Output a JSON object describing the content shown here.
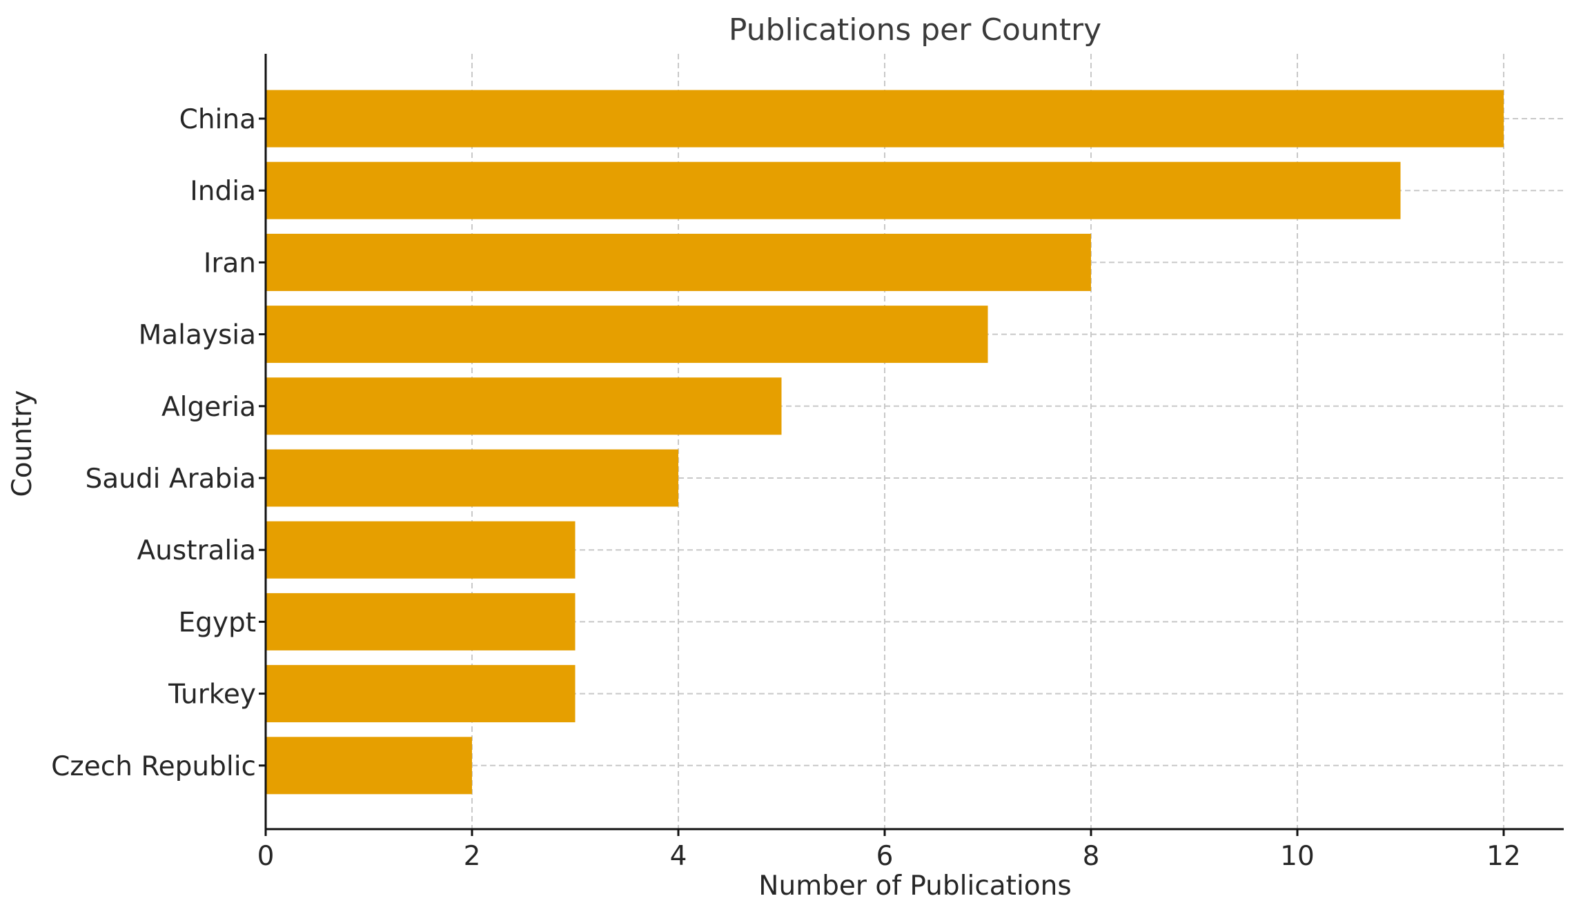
{
  "chart_data": {
    "type": "bar",
    "orientation": "horizontal",
    "title": "Publications per Country",
    "xlabel": "Number of Publications",
    "ylabel": "Country",
    "categories": [
      "China",
      "India",
      "Iran",
      "Malaysia",
      "Algeria",
      "Saudi Arabia",
      "Australia",
      "Egypt",
      "Turkey",
      "Czech Republic"
    ],
    "values": [
      12,
      11,
      8,
      7,
      5,
      4,
      3,
      3,
      3,
      2
    ],
    "xlim": [
      0,
      12.6
    ],
    "xticks": [
      0,
      2,
      4,
      6,
      8,
      10,
      12
    ],
    "grid": true,
    "bar_color": "#E69F00"
  }
}
